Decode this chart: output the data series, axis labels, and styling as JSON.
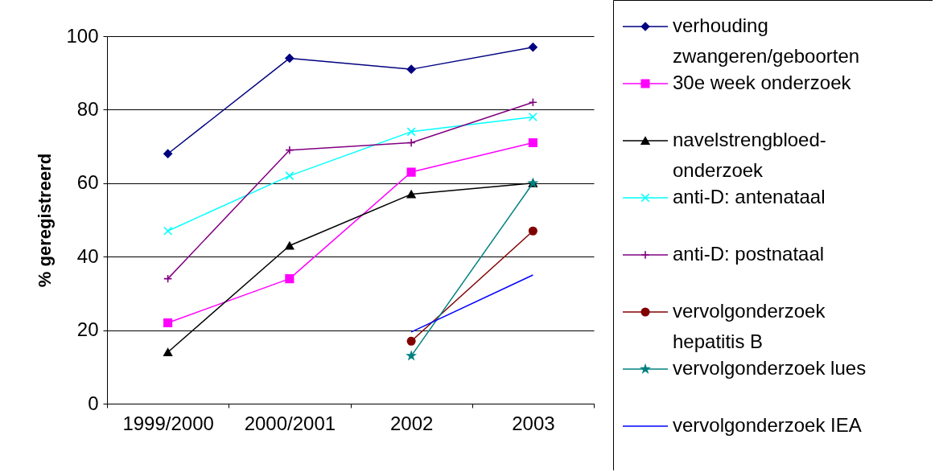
{
  "chart_data": {
    "type": "line",
    "ylabel": "% geregistreerd",
    "categories": [
      "1999/2000",
      "2000/2001",
      "2002",
      "2003"
    ],
    "ylim": [
      0,
      100
    ],
    "yticks": [
      0,
      20,
      40,
      60,
      80,
      100
    ],
    "grid": "y",
    "legend": "right",
    "series": [
      {
        "name": "verhouding zwangeren/geboorten",
        "color": "#000080",
        "marker": "diamond",
        "values": [
          68,
          94,
          91,
          97
        ]
      },
      {
        "name": "30e week onderzoek",
        "color": "#ff00ff",
        "marker": "square",
        "values": [
          22,
          34,
          63,
          71
        ]
      },
      {
        "name": "navelstrengbloed-onderzoek",
        "color": "#000000",
        "marker": "triangle",
        "values": [
          14,
          43,
          57,
          60
        ]
      },
      {
        "name": "anti-D: antenataal",
        "color": "#00ffff",
        "marker": "cross",
        "values": [
          47,
          62,
          74,
          78
        ]
      },
      {
        "name": "anti-D: postnataal",
        "color": "#800080",
        "marker": "plus",
        "values": [
          34,
          69,
          71,
          82
        ]
      },
      {
        "name": "vervolgonderzoek hepatitis B",
        "color": "#800000",
        "marker": "circle",
        "values": [
          null,
          null,
          17,
          47
        ]
      },
      {
        "name": "vervolgonderzoek lues",
        "color": "#008080",
        "marker": "star",
        "values": [
          null,
          null,
          13,
          60
        ]
      },
      {
        "name": "vervolgonderzoek IEA",
        "color": "#0000ff",
        "marker": "none",
        "values": [
          null,
          null,
          19.5,
          35
        ]
      }
    ]
  }
}
